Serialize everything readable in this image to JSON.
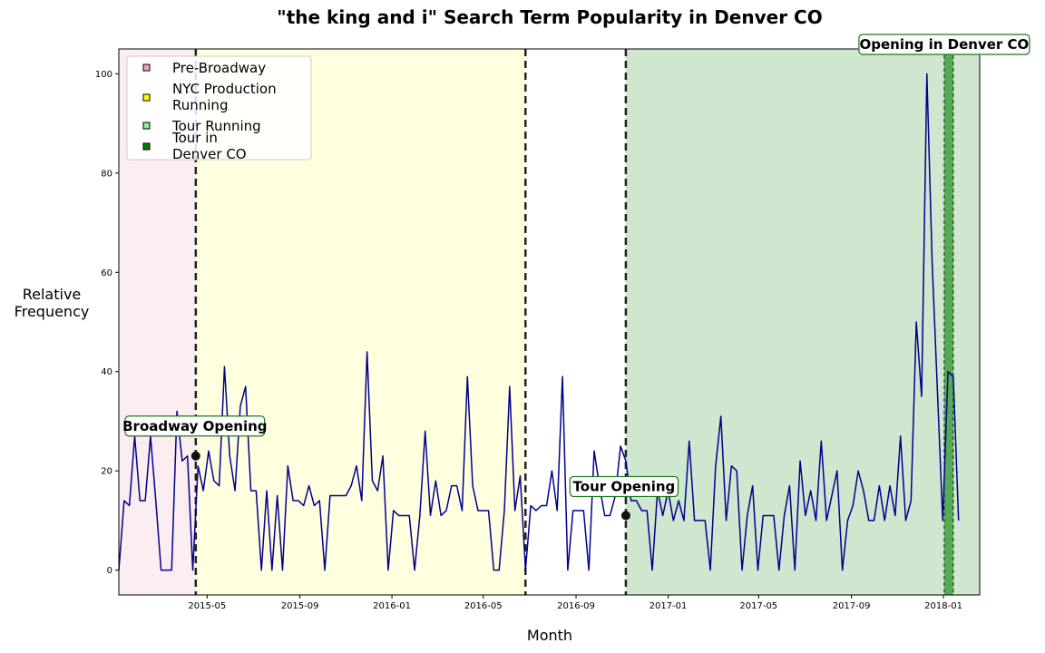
{
  "chart_data": {
    "type": "line",
    "title": "\"the king and i\" Search Term Popularity in Denver CO",
    "xlabel": "Month",
    "ylabel": "Relative\nFrequency",
    "ylim": [
      -5,
      105
    ],
    "xlim": [
      "2015-01-04",
      "2018-02-18"
    ],
    "yticks": [
      0,
      20,
      40,
      60,
      80,
      100
    ],
    "xticks": [
      {
        "date": "2015-05-01",
        "label": "2015-05"
      },
      {
        "date": "2015-09-01",
        "label": "2015-09"
      },
      {
        "date": "2016-01-01",
        "label": "2016-01"
      },
      {
        "date": "2016-05-01",
        "label": "2016-05"
      },
      {
        "date": "2016-09-01",
        "label": "2016-09"
      },
      {
        "date": "2017-01-01",
        "label": "2017-01"
      },
      {
        "date": "2017-05-01",
        "label": "2017-05"
      },
      {
        "date": "2017-09-01",
        "label": "2017-09"
      },
      {
        "date": "2018-01-01",
        "label": "2018-01"
      }
    ],
    "grid": false,
    "legend": "top-left",
    "line_color": "#00008b",
    "regions": [
      {
        "name": "Pre-Broadway",
        "start": "2015-01-04",
        "end": "2015-04-16",
        "color": "#fcedf0",
        "swatch": "#f4a6a6"
      },
      {
        "name": "NYC Production Running",
        "start": "2015-04-16",
        "end": "2016-06-26",
        "color": "#ffffe0",
        "swatch": "#ffff00"
      },
      {
        "name": "Tour Running",
        "start": "2016-11-06",
        "end": "2018-02-18",
        "color": "#cfe6cf",
        "swatch": "#90ee90"
      },
      {
        "name": "Tour in Denver CO",
        "start": "2018-01-02",
        "end": "2018-01-14",
        "color": "#55aa55",
        "swatch": "#008000"
      }
    ],
    "vlines": [
      "2015-04-16",
      "2016-06-26",
      "2016-11-06"
    ],
    "annotations": [
      {
        "text": "Broadway Opening",
        "date": "2015-04-16",
        "y": 23
      },
      {
        "text": "Tour Opening",
        "date": "2016-11-06",
        "y": 11
      },
      {
        "text": "Opening in Denver CO",
        "date": "2018-01-02",
        "y": 100
      }
    ],
    "series": [
      {
        "start": "2015-01-04",
        "step_days": 7,
        "values": [
          0,
          14,
          13,
          27,
          14,
          14,
          27,
          14,
          0,
          0,
          0,
          32,
          22,
          23,
          0,
          21,
          16,
          24,
          18,
          17,
          41,
          23,
          16,
          33,
          37,
          16,
          16,
          0,
          16,
          0,
          15,
          0,
          21,
          14,
          14,
          13,
          17,
          13,
          14,
          0,
          15,
          15,
          15,
          15,
          17,
          21,
          14,
          44,
          18,
          16,
          23,
          0,
          12,
          11,
          11,
          11,
          0,
          11,
          28,
          11,
          18,
          11,
          12,
          17,
          17,
          12,
          39,
          17,
          12,
          12,
          12,
          0,
          0,
          12,
          37,
          12,
          19,
          0,
          13,
          12,
          13,
          13,
          20,
          12,
          39,
          0,
          12,
          12,
          12,
          0,
          24,
          17,
          11,
          11,
          15,
          25,
          22,
          14,
          14,
          12,
          12,
          0,
          16,
          11,
          16,
          10,
          14,
          10,
          26,
          10,
          10,
          10,
          0,
          21,
          31,
          10,
          21,
          20,
          0,
          11,
          17,
          0,
          11,
          11,
          11,
          0,
          11,
          17,
          0,
          22,
          11,
          16,
          10,
          26,
          10,
          15,
          20,
          0,
          10,
          13,
          20,
          16,
          10,
          10,
          17,
          10,
          17,
          11,
          27,
          10,
          14,
          50,
          35,
          100,
          62,
          36,
          10,
          40,
          39,
          10
        ]
      }
    ]
  }
}
